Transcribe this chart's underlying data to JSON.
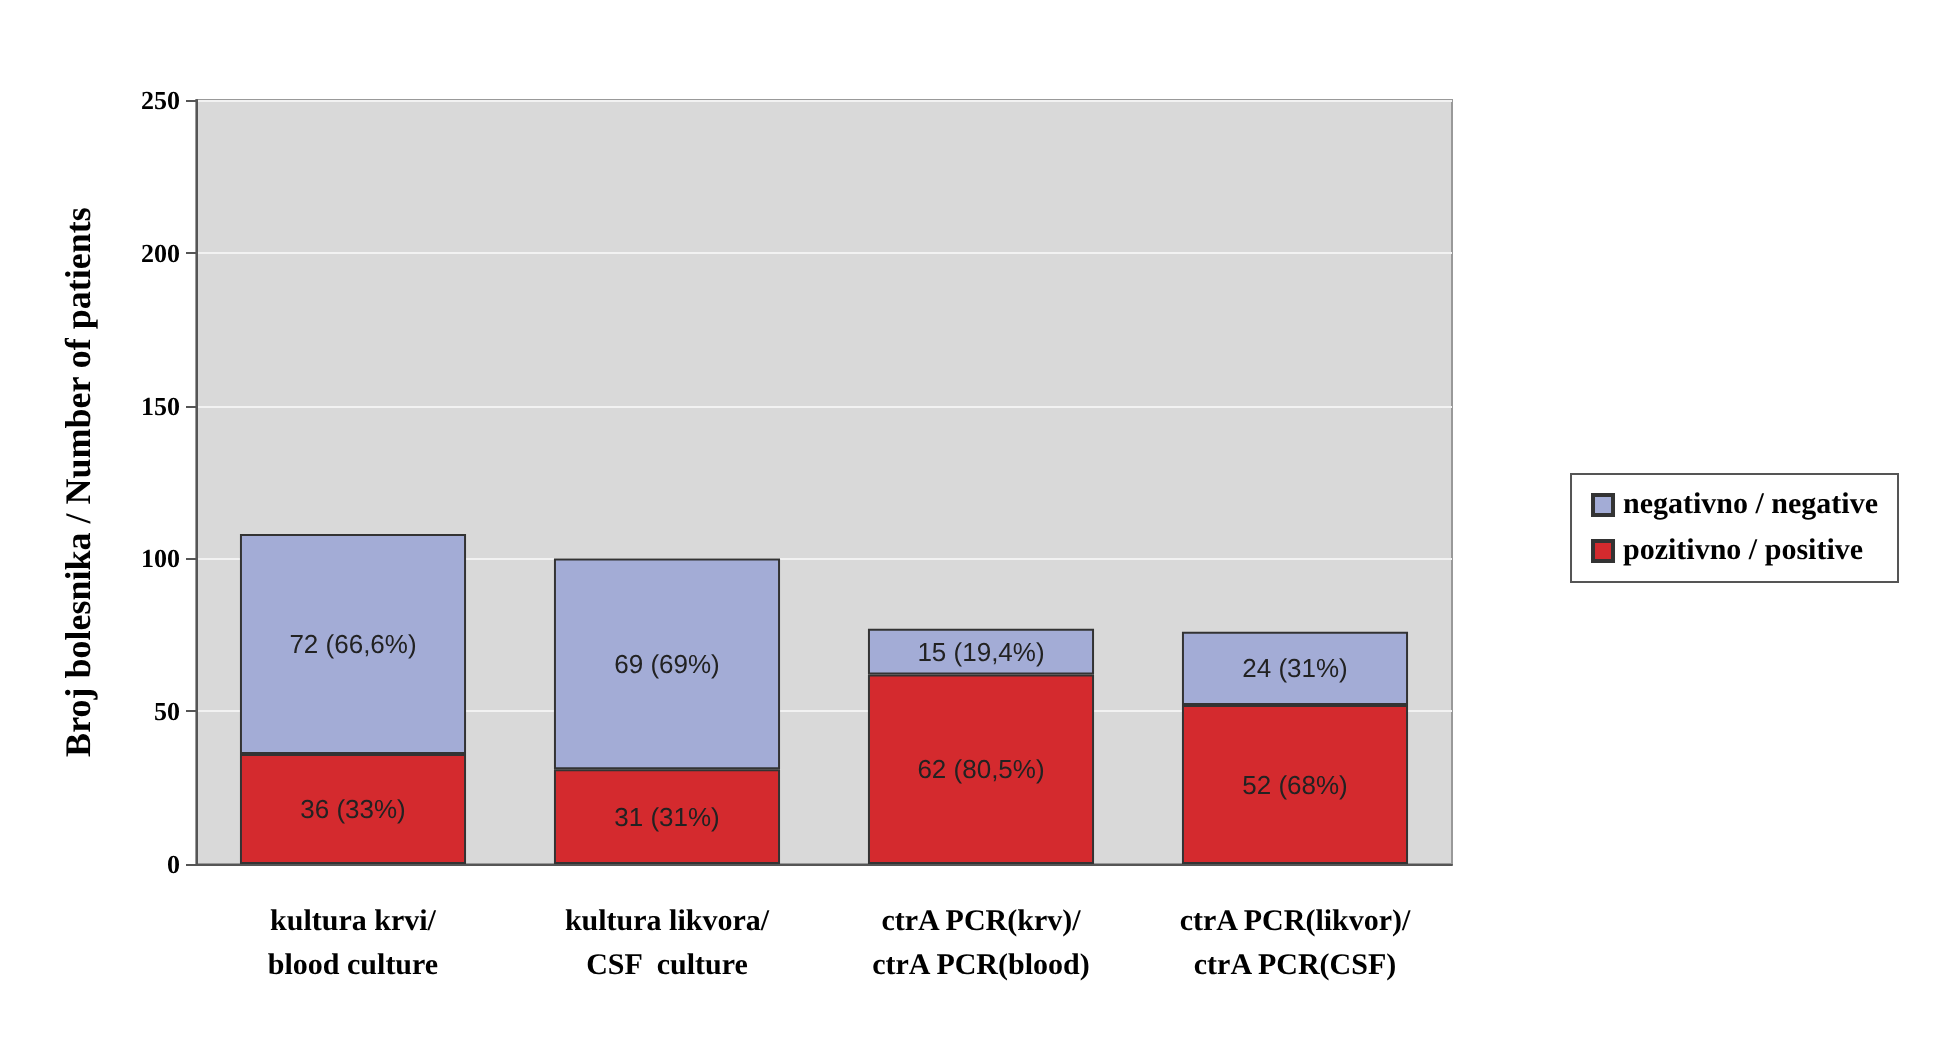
{
  "chart_data": {
    "type": "bar",
    "ylabel": "Broj bolesnika / Number of patients",
    "categories": [
      "kultura krvi/\nblood culture",
      "kultura likvora/\nCSF  culture",
      "ctrA PCR(krv)/\nctrA PCR(blood)",
      "ctrA PCR(likvor)/\nctrA PCR(CSF)"
    ],
    "stacked": true,
    "series": [
      {
        "name": "pozitivno / positive",
        "color": "#d42a2e",
        "values": [
          36,
          31,
          62,
          52
        ],
        "value_labels": [
          "36 (33%)",
          "31 (31%)",
          "62 (80,5%)",
          "52 (68%)"
        ]
      },
      {
        "name": "negativno / negative",
        "color": "#a3acd6",
        "values": [
          72,
          69,
          15,
          24
        ],
        "value_labels": [
          "72 (66,6%)",
          "69 (69%)",
          "15 (19,4%)",
          "24 (31%)"
        ]
      }
    ],
    "ylim": [
      0,
      250
    ],
    "yticks": [
      0,
      50,
      100,
      150,
      200,
      250
    ],
    "grid": "y",
    "legend": "right"
  }
}
